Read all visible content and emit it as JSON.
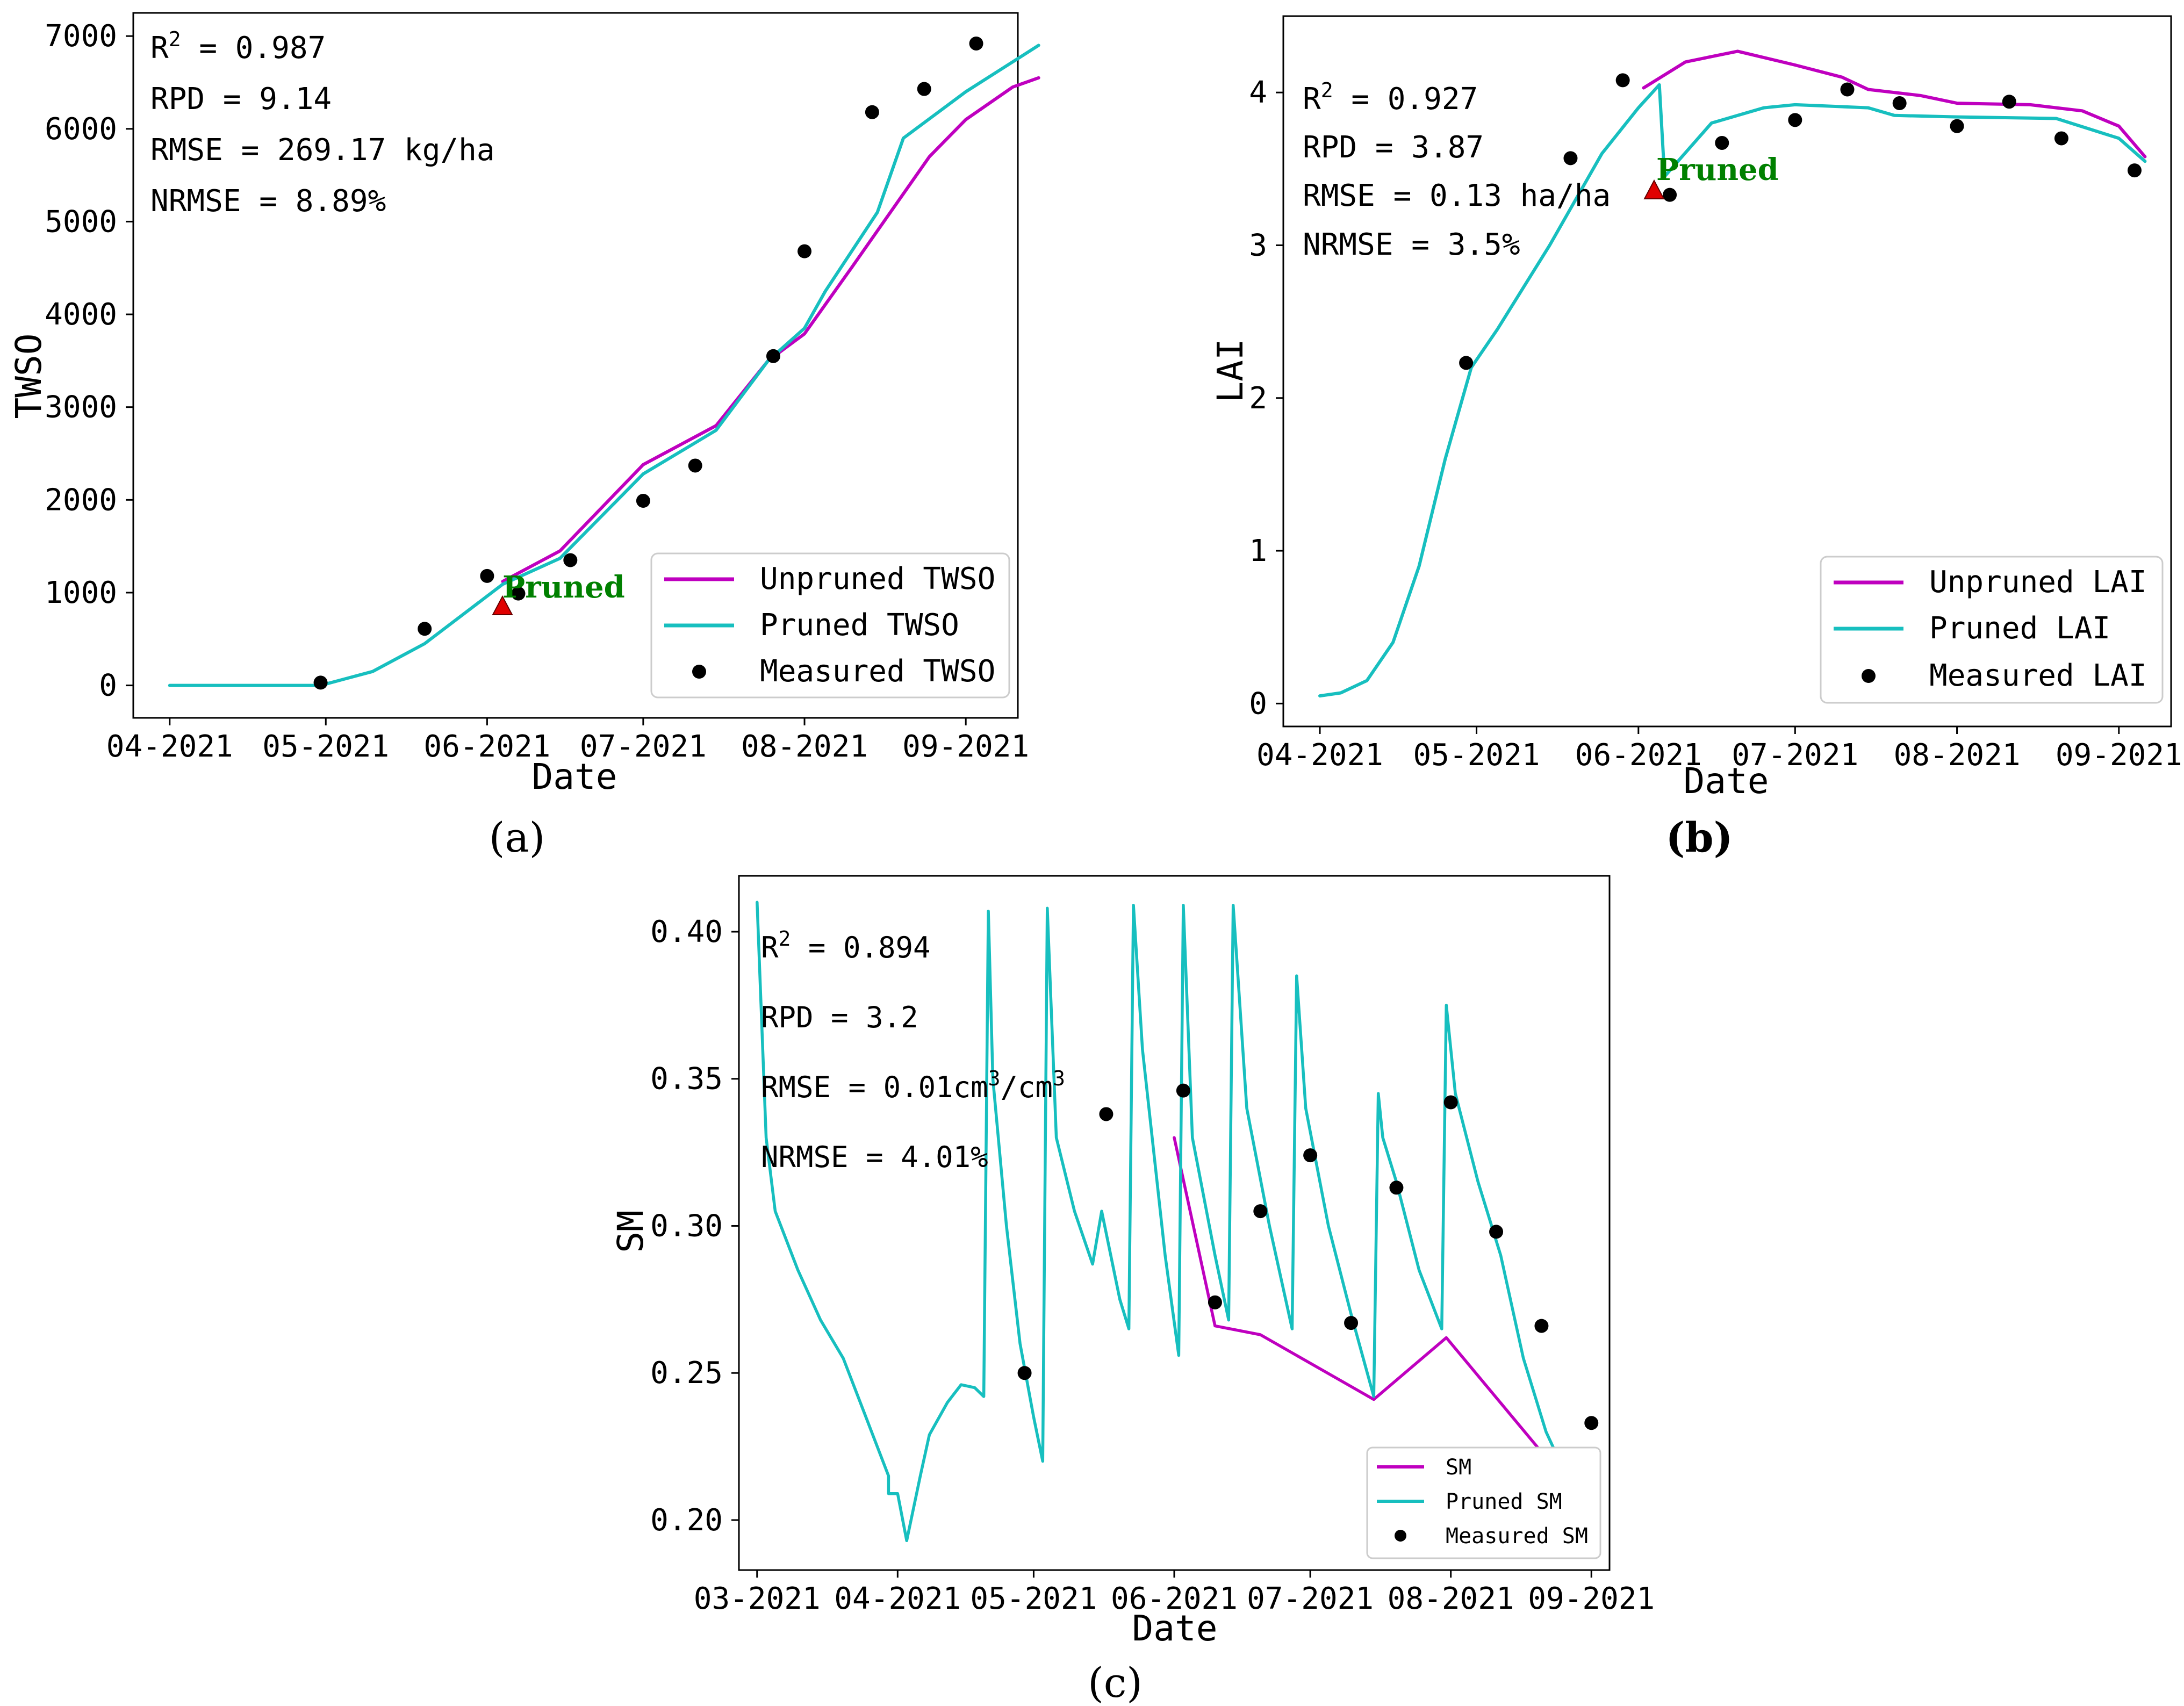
{
  "colors": {
    "unpruned": "#bf00bf",
    "pruned": "#17bfbf",
    "measured": "#000000",
    "pruned_marker": "#e00000",
    "annotation": "#008000"
  },
  "chart_data": [
    {
      "panel": "(a)",
      "type": "line",
      "xlabel": "Date",
      "ylabel": "TWSO",
      "x_ticks": [
        "04-2021",
        "05-2021",
        "06-2021",
        "07-2021",
        "08-2021",
        "09-2021"
      ],
      "xlim": [
        "2021-03-25",
        "2021-09-11"
      ],
      "y_ticks": [
        "0",
        "1000",
        "2000",
        "3000",
        "4000",
        "5000",
        "6000",
        "7000"
      ],
      "ylim": [
        -350,
        7250
      ],
      "grid": false,
      "legend_position": "bottom-right",
      "stats": [
        "R2 = 0.987",
        "RPD = 9.14",
        "RMSE = 269.17 kg/ha",
        "NRMSE = 8.89%"
      ],
      "annotation": {
        "text": "Pruned",
        "x": "2021-06-04",
        "y": 850
      },
      "series": [
        {
          "name": "Unpruned TWSO",
          "kind": "line",
          "points": [
            [
              "2021-06-04",
              1120
            ],
            [
              "2021-06-15",
              1450
            ],
            [
              "2021-07-01",
              2380
            ],
            [
              "2021-07-15",
              2800
            ],
            [
              "2021-07-25",
              3500
            ],
            [
              "2021-08-01",
              3790
            ],
            [
              "2021-08-10",
              4500
            ],
            [
              "2021-08-15",
              4900
            ],
            [
              "2021-08-25",
              5700
            ],
            [
              "2021-09-01",
              6100
            ],
            [
              "2021-09-10",
              6450
            ],
            [
              "2021-09-15",
              6550
            ]
          ]
        },
        {
          "name": "Pruned TWSO",
          "kind": "line",
          "points": [
            [
              "2021-04-01",
              0
            ],
            [
              "2021-04-30",
              0
            ],
            [
              "2021-05-10",
              150
            ],
            [
              "2021-05-20",
              450
            ],
            [
              "2021-06-04",
              1090
            ],
            [
              "2021-06-15",
              1370
            ],
            [
              "2021-07-01",
              2280
            ],
            [
              "2021-07-15",
              2750
            ],
            [
              "2021-07-25",
              3500
            ],
            [
              "2021-08-01",
              3850
            ],
            [
              "2021-08-05",
              4250
            ],
            [
              "2021-08-15",
              5100
            ],
            [
              "2021-08-20",
              5900
            ],
            [
              "2021-09-01",
              6400
            ],
            [
              "2021-09-15",
              6900
            ]
          ]
        },
        {
          "name": "Measured TWSO",
          "kind": "scatter",
          "points": [
            [
              "2021-04-30",
              30
            ],
            [
              "2021-05-20",
              610
            ],
            [
              "2021-06-01",
              1180
            ],
            [
              "2021-06-07",
              990
            ],
            [
              "2021-06-17",
              1350
            ],
            [
              "2021-07-01",
              1990
            ],
            [
              "2021-07-11",
              2370
            ],
            [
              "2021-07-26",
              3550
            ],
            [
              "2021-08-01",
              4680
            ],
            [
              "2021-08-14",
              6180
            ],
            [
              "2021-08-24",
              6430
            ],
            [
              "2021-09-03",
              6920
            ]
          ]
        }
      ]
    },
    {
      "panel": "(b)",
      "type": "line",
      "xlabel": "Date",
      "ylabel": "LAI",
      "x_ticks": [
        "04-2021",
        "05-2021",
        "06-2021",
        "07-2021",
        "08-2021",
        "09-2021"
      ],
      "xlim": [
        "2021-03-25",
        "2021-09-11"
      ],
      "y_ticks": [
        "0",
        "1",
        "2",
        "3",
        "4"
      ],
      "ylim": [
        -0.15,
        4.5
      ],
      "grid": false,
      "legend_position": "bottom-right",
      "stats": [
        "R2 = 0.927",
        "RPD = 3.87",
        "RMSE = 0.13 ha/ha",
        "NRMSE = 3.5%"
      ],
      "annotation": {
        "text": "Pruned",
        "x": "2021-06-03",
        "y": 3.35
      },
      "series": [
        {
          "name": "Unpruned LAI",
          "kind": "line",
          "points": [
            [
              "2021-06-02",
              4.03
            ],
            [
              "2021-06-10",
              4.2
            ],
            [
              "2021-06-20",
              4.27
            ],
            [
              "2021-07-01",
              4.18
            ],
            [
              "2021-07-10",
              4.1
            ],
            [
              "2021-07-15",
              4.02
            ],
            [
              "2021-07-25",
              3.98
            ],
            [
              "2021-08-01",
              3.93
            ],
            [
              "2021-08-15",
              3.92
            ],
            [
              "2021-08-25",
              3.88
            ],
            [
              "2021-09-01",
              3.78
            ],
            [
              "2021-09-06",
              3.58
            ]
          ]
        },
        {
          "name": "Pruned LAI",
          "kind": "line",
          "points": [
            [
              "2021-04-01",
              0.05
            ],
            [
              "2021-04-05",
              0.07
            ],
            [
              "2021-04-10",
              0.15
            ],
            [
              "2021-04-15",
              0.4
            ],
            [
              "2021-04-20",
              0.9
            ],
            [
              "2021-04-25",
              1.6
            ],
            [
              "2021-04-30",
              2.2
            ],
            [
              "2021-05-05",
              2.45
            ],
            [
              "2021-05-15",
              3.0
            ],
            [
              "2021-05-25",
              3.6
            ],
            [
              "2021-06-01",
              3.9
            ],
            [
              "2021-06-05",
              4.05
            ],
            [
              "2021-06-06",
              3.45
            ],
            [
              "2021-06-15",
              3.8
            ],
            [
              "2021-06-25",
              3.9
            ],
            [
              "2021-07-01",
              3.92
            ],
            [
              "2021-07-15",
              3.9
            ],
            [
              "2021-07-20",
              3.85
            ],
            [
              "2021-08-01",
              3.84
            ],
            [
              "2021-08-20",
              3.83
            ],
            [
              "2021-09-01",
              3.7
            ],
            [
              "2021-09-06",
              3.55
            ]
          ]
        },
        {
          "name": "Measured LAI",
          "kind": "scatter",
          "points": [
            [
              "2021-04-29",
              2.23
            ],
            [
              "2021-05-19",
              3.57
            ],
            [
              "2021-05-29",
              4.08
            ],
            [
              "2021-06-07",
              3.33
            ],
            [
              "2021-06-17",
              3.67
            ],
            [
              "2021-07-01",
              3.82
            ],
            [
              "2021-07-11",
              4.02
            ],
            [
              "2021-07-21",
              3.93
            ],
            [
              "2021-08-01",
              3.78
            ],
            [
              "2021-08-11",
              3.94
            ],
            [
              "2021-08-21",
              3.7
            ],
            [
              "2021-09-04",
              3.49
            ]
          ]
        }
      ]
    },
    {
      "panel": "(c)",
      "type": "line",
      "xlabel": "Date",
      "ylabel": "SM",
      "x_ticks": [
        "03-2021",
        "04-2021",
        "05-2021",
        "06-2021",
        "07-2021",
        "08-2021",
        "09-2021"
      ],
      "xlim": [
        "2021-02-25",
        "2021-09-05"
      ],
      "y_ticks": [
        "0.20",
        "0.25",
        "0.30",
        "0.35",
        "0.40"
      ],
      "ylim": [
        0.183,
        0.419
      ],
      "grid": false,
      "legend_position": "bottom-right",
      "stats": [
        "R2 = 0.894",
        "RPD = 3.2",
        "RMSE = 0.01cm3/cm3",
        "NRMSE = 4.01%"
      ],
      "series": [
        {
          "name": "SM",
          "kind": "line",
          "points": [
            [
              "2021-06-01",
              0.33
            ],
            [
              "2021-06-10",
              0.266
            ],
            [
              "2021-06-20",
              0.263
            ],
            [
              "2021-07-15",
              0.241
            ],
            [
              "2021-07-31",
              0.262
            ],
            [
              "2021-08-20",
              0.225
            ],
            [
              "2021-08-28",
              0.205
            ]
          ]
        },
        {
          "name": "Pruned SM",
          "kind": "line",
          "points": [
            [
              "2021-03-01",
              0.41
            ],
            [
              "2021-03-03",
              0.33
            ],
            [
              "2021-03-05",
              0.305
            ],
            [
              "2021-03-10",
              0.285
            ],
            [
              "2021-03-15",
              0.268
            ],
            [
              "2021-03-20",
              0.255
            ],
            [
              "2021-03-25",
              0.235
            ],
            [
              "2021-03-30",
              0.215
            ],
            [
              "2021-03-30",
              0.209
            ],
            [
              "2021-04-01",
              0.209
            ],
            [
              "2021-04-03",
              0.193
            ],
            [
              "2021-04-06",
              0.215
            ],
            [
              "2021-04-08",
              0.229
            ],
            [
              "2021-04-12",
              0.24
            ],
            [
              "2021-04-15",
              0.246
            ],
            [
              "2021-04-18",
              0.245
            ],
            [
              "2021-04-20",
              0.242
            ],
            [
              "2021-04-21",
              0.407
            ],
            [
              "2021-04-22",
              0.35
            ],
            [
              "2021-04-25",
              0.3
            ],
            [
              "2021-04-28",
              0.26
            ],
            [
              "2021-05-01",
              0.235
            ],
            [
              "2021-05-03",
              0.22
            ],
            [
              "2021-05-04",
              0.408
            ],
            [
              "2021-05-06",
              0.33
            ],
            [
              "2021-05-10",
              0.305
            ],
            [
              "2021-05-14",
              0.287
            ],
            [
              "2021-05-16",
              0.305
            ],
            [
              "2021-05-18",
              0.29
            ],
            [
              "2021-05-20",
              0.275
            ],
            [
              "2021-05-22",
              0.265
            ],
            [
              "2021-05-23",
              0.409
            ],
            [
              "2021-05-25",
              0.36
            ],
            [
              "2021-05-30",
              0.29
            ],
            [
              "2021-06-02",
              0.256
            ],
            [
              "2021-06-03",
              0.409
            ],
            [
              "2021-06-05",
              0.33
            ],
            [
              "2021-06-10",
              0.29
            ],
            [
              "2021-06-13",
              0.268
            ],
            [
              "2021-06-14",
              0.409
            ],
            [
              "2021-06-17",
              0.34
            ],
            [
              "2021-06-22",
              0.3
            ],
            [
              "2021-06-27",
              0.265
            ],
            [
              "2021-06-28",
              0.385
            ],
            [
              "2021-06-30",
              0.34
            ],
            [
              "2021-07-05",
              0.3
            ],
            [
              "2021-07-10",
              0.27
            ],
            [
              "2021-07-15",
              0.242
            ],
            [
              "2021-07-16",
              0.345
            ],
            [
              "2021-07-17",
              0.33
            ],
            [
              "2021-07-20",
              0.315
            ],
            [
              "2021-07-25",
              0.285
            ],
            [
              "2021-07-30",
              0.265
            ],
            [
              "2021-07-31",
              0.375
            ],
            [
              "2021-08-02",
              0.345
            ],
            [
              "2021-08-07",
              0.315
            ],
            [
              "2021-08-12",
              0.29
            ],
            [
              "2021-08-17",
              0.255
            ],
            [
              "2021-08-22",
              0.23
            ],
            [
              "2021-08-31",
              0.2
            ]
          ]
        },
        {
          "name": "Measured SM",
          "kind": "scatter",
          "points": [
            [
              "2021-04-29",
              0.25
            ],
            [
              "2021-05-17",
              0.338
            ],
            [
              "2021-06-03",
              0.346
            ],
            [
              "2021-06-10",
              0.274
            ],
            [
              "2021-06-20",
              0.305
            ],
            [
              "2021-07-01",
              0.324
            ],
            [
              "2021-07-10",
              0.267
            ],
            [
              "2021-07-20",
              0.313
            ],
            [
              "2021-08-01",
              0.342
            ],
            [
              "2021-08-11",
              0.298
            ],
            [
              "2021-08-21",
              0.266
            ],
            [
              "2021-09-01",
              0.233
            ]
          ]
        }
      ]
    }
  ]
}
